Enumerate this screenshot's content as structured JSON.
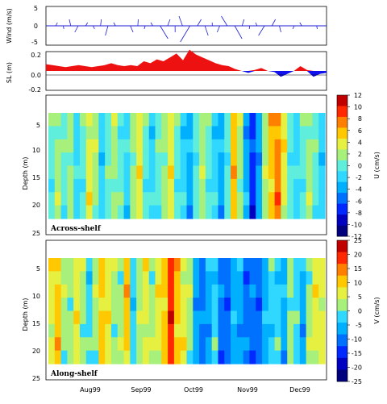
{
  "chart_data": [
    {
      "type": "line",
      "panel": "wind",
      "ylabel": "Wind (m/s)",
      "ylim": [
        -6,
        5
      ],
      "yticks": [
        "5",
        "0",
        "-5"
      ],
      "color": "#1d1dd6",
      "series": [
        {
          "values": [
            0,
            1,
            -1,
            2,
            -2,
            1,
            -1,
            2,
            -3,
            1,
            0,
            -2,
            2,
            -1,
            1,
            -4,
            2,
            -2,
            3,
            -5,
            2,
            -3,
            1,
            -2,
            3,
            -4,
            2,
            -1,
            1,
            -3,
            2,
            -2,
            0,
            -1,
            1,
            0,
            -1,
            0
          ]
        }
      ]
    },
    {
      "type": "area",
      "panel": "sea-level",
      "ylabel": "SL (m)",
      "ylim": [
        -0.2,
        0.2
      ],
      "yticks": [
        "0.2",
        "0.0",
        "-0.2"
      ],
      "positive_color": "#ee1111",
      "negative_color": "#1111ee",
      "series": [
        {
          "values": [
            0.07,
            0.06,
            0.05,
            0.04,
            0.05,
            0.06,
            0.05,
            0.04,
            0.05,
            0.06,
            0.08,
            0.06,
            0.05,
            0.06,
            0.05,
            0.1,
            0.08,
            0.12,
            0.1,
            0.14,
            0.18,
            0.11,
            0.22,
            0.17,
            0.14,
            0.11,
            0.08,
            0.06,
            0.05,
            0.02,
            0.0,
            -0.02,
            0.01,
            0.03,
            0.0,
            -0.01,
            -0.06,
            -0.03,
            0.0,
            0.05,
            0.01,
            -0.06,
            -0.03,
            -0.02
          ]
        }
      ]
    },
    {
      "type": "heatmap",
      "panel": "across-shelf",
      "label": "Across-shelf",
      "ylabel": "Depth (m)",
      "yticks": [
        "5",
        "10",
        "15",
        "20",
        "25"
      ],
      "ylim": [
        25,
        0
      ],
      "colorbar_label": "U (cm/s)",
      "colorbar_ticks": [
        "12",
        "10",
        "8",
        "6",
        "4",
        "2",
        "0",
        "-2",
        "-4",
        "-6",
        "-8",
        "-10",
        "-12"
      ],
      "colors": [
        "#00007f",
        "#0000c0",
        "#0028ff",
        "#0070ff",
        "#00b0ff",
        "#30d8ff",
        "#60eedc",
        "#a8f07c",
        "#e6f040",
        "#ffc800",
        "#ff8000",
        "#ff2800",
        "#c00000"
      ],
      "columns": [
        0,
        1,
        0,
        1,
        -1,
        0,
        2,
        1,
        -1,
        0,
        1,
        0,
        -1,
        1,
        2,
        0,
        -1,
        0,
        1,
        2,
        0,
        -1,
        -2,
        0,
        1,
        0,
        -1,
        -2,
        0,
        3,
        1,
        -2,
        -4,
        -2,
        1,
        3,
        4,
        2,
        0,
        -1,
        0,
        1,
        0,
        -1
      ]
    },
    {
      "type": "heatmap",
      "panel": "along-shelf",
      "label": "Along-shelf",
      "ylabel": "Depth (m)",
      "yticks": [
        "5",
        "10",
        "15",
        "20",
        "25"
      ],
      "ylim": [
        25,
        0
      ],
      "xlabel_ticks": [
        "Aug99",
        "Sep99",
        "Oct99",
        "Nov99",
        "Dec99"
      ],
      "colorbar_label": "V (cm/s)",
      "colorbar_ticks": [
        "25",
        "20",
        "15",
        "10",
        "5",
        "0",
        "-5",
        "-10",
        "-15",
        "-20",
        "-25"
      ],
      "colors": [
        "#00007f",
        "#0000c0",
        "#0028ff",
        "#0070ff",
        "#00b0ff",
        "#30d8ff",
        "#a8f07c",
        "#e6f040",
        "#ffc800",
        "#ff8000",
        "#ff2800",
        "#c00000"
      ],
      "columns": [
        1,
        2,
        0,
        0,
        1,
        0,
        -1,
        0,
        2,
        1,
        0,
        0,
        2,
        -1,
        0,
        1,
        0,
        1,
        2,
        4,
        2,
        1,
        0,
        -2,
        -3,
        -2,
        -1,
        -3,
        -3,
        -2,
        -2,
        -3,
        -3,
        -3,
        -2,
        -1,
        -1,
        -2,
        0,
        -1,
        -2,
        0,
        1,
        1
      ]
    }
  ]
}
